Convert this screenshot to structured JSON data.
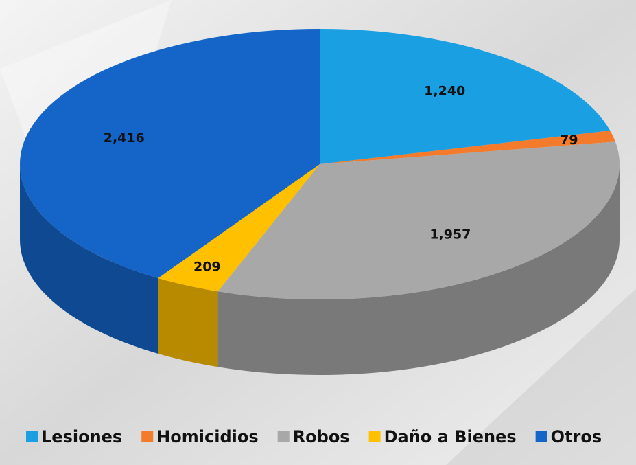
{
  "chart_data": {
    "type": "pie3d",
    "categories": [
      "Lesiones",
      "Homicidios",
      "Robos",
      "Daño a Bienes",
      "Otros"
    ],
    "values": [
      1240,
      79,
      1957,
      209,
      2416
    ],
    "value_labels": [
      "1,240",
      "79",
      "1,957",
      "209",
      "2,416"
    ],
    "colors": [
      "#1aa0e2",
      "#f47b2c",
      "#a8a8a8",
      "#ffc000",
      "#1565c9"
    ],
    "legend": "bottom"
  }
}
